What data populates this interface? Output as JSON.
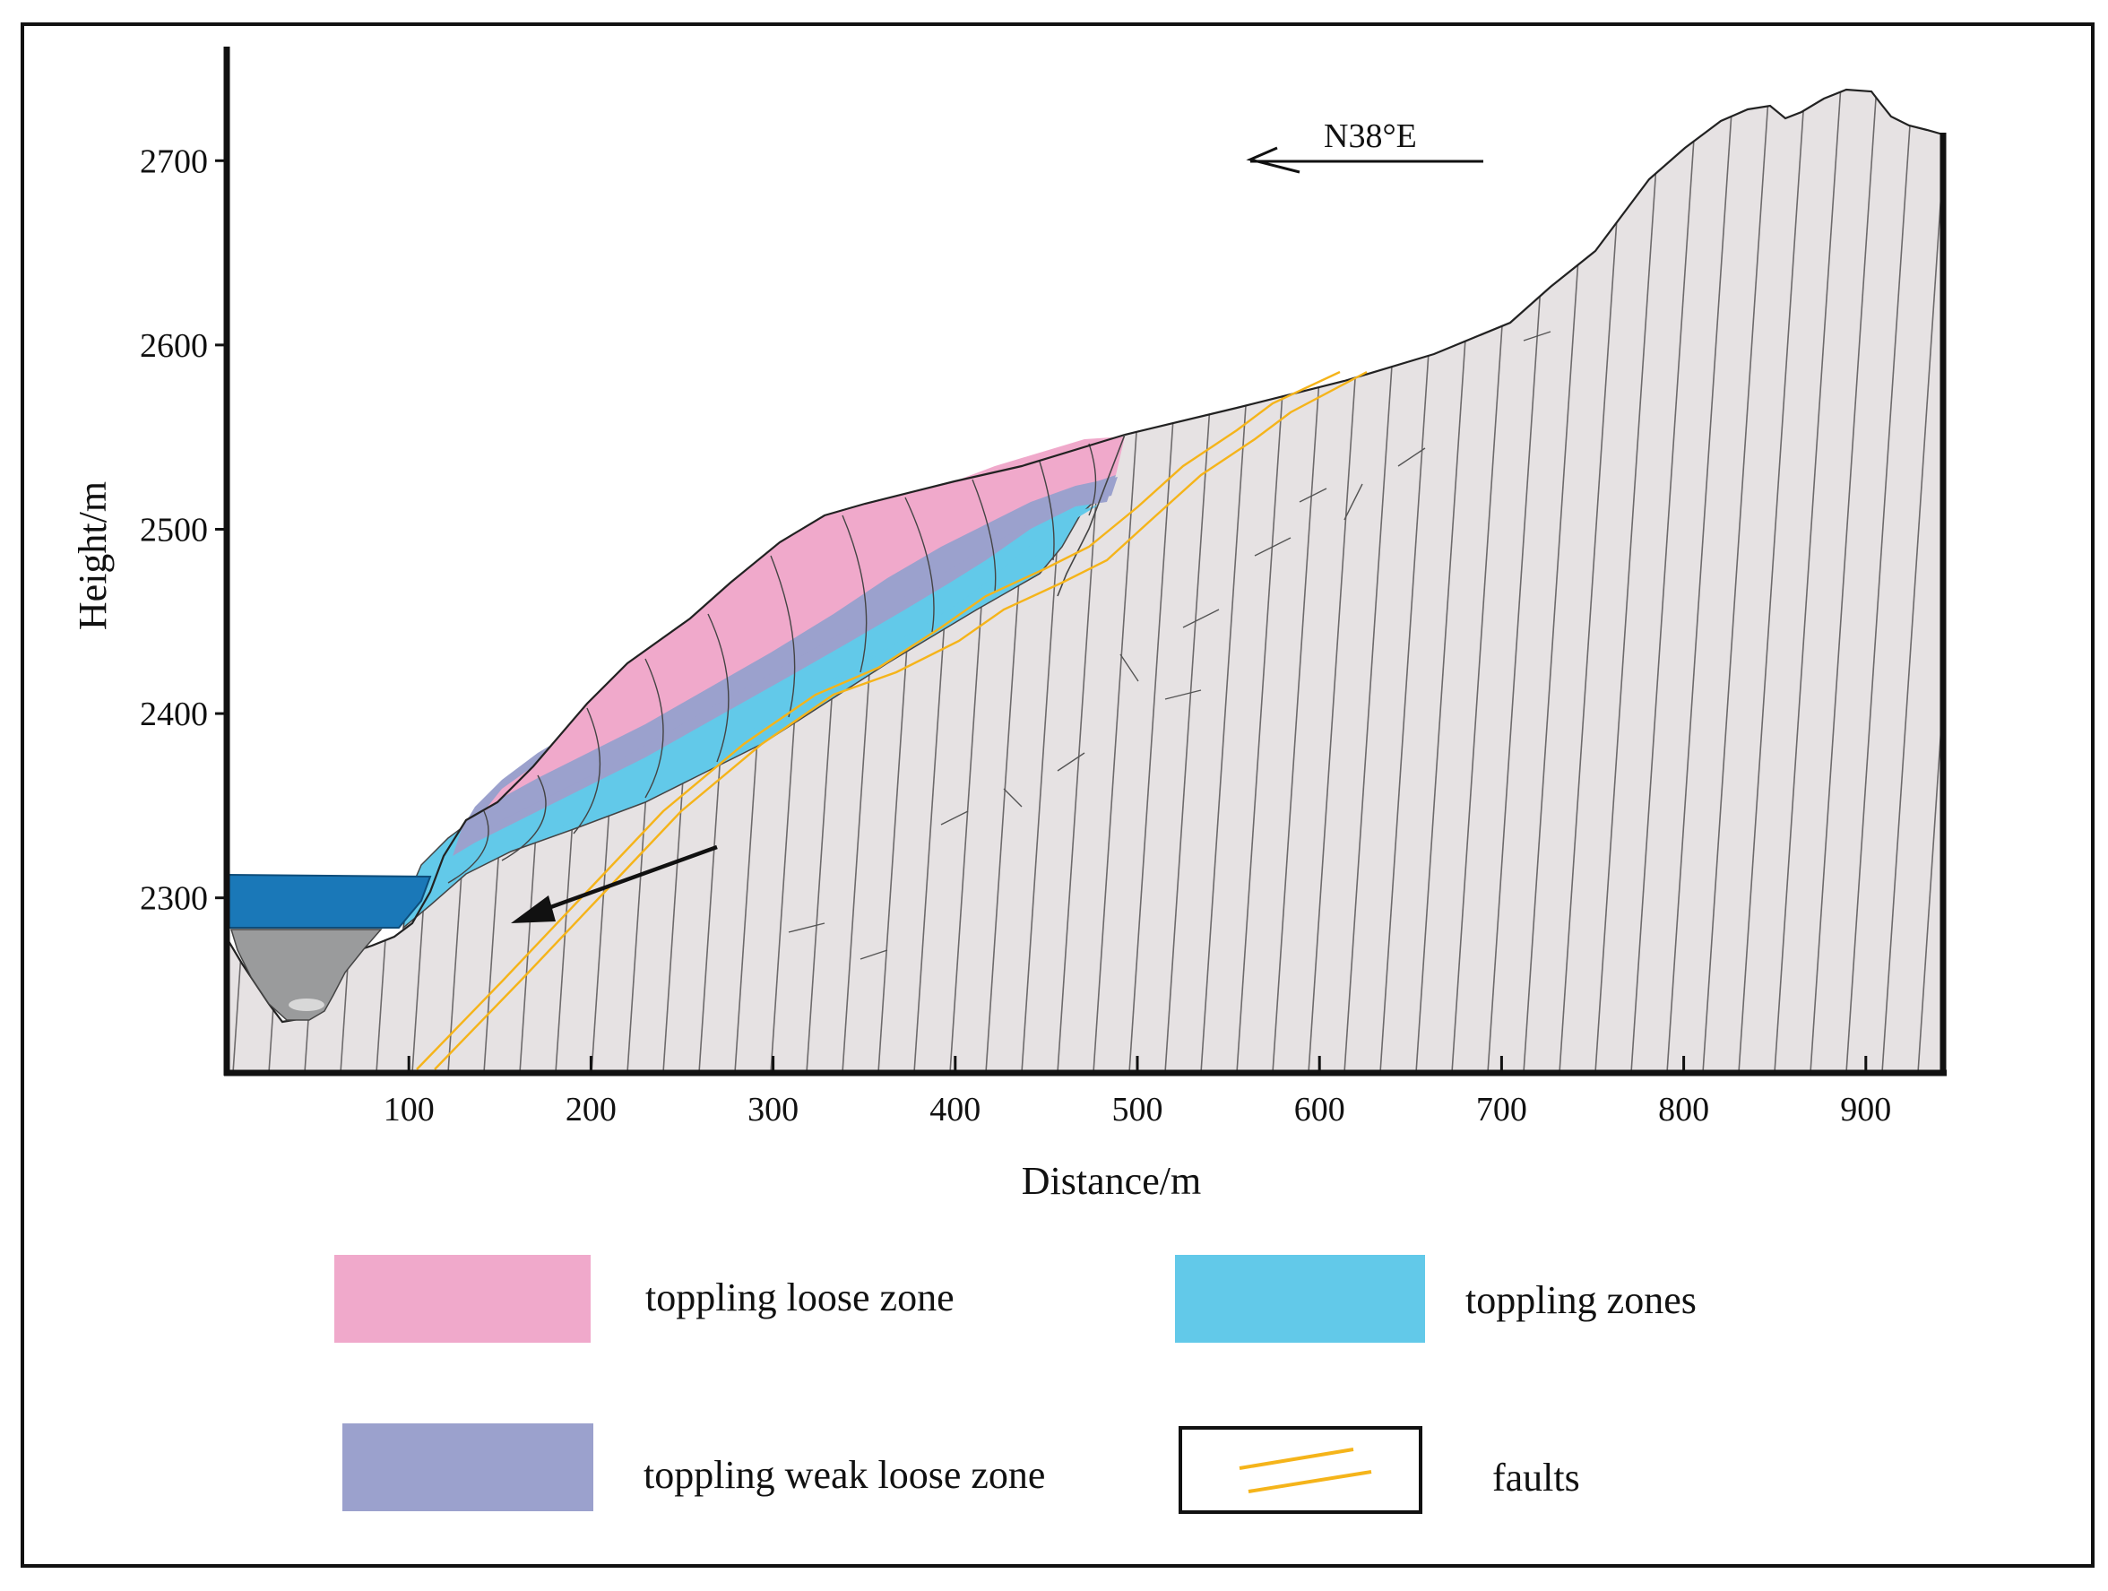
{
  "diagram": {
    "type": "geological-cross-section",
    "orientation_label": "N38°E",
    "x_axis": {
      "title": "Distance/m",
      "range": [
        0,
        940
      ],
      "ticks": [
        100,
        200,
        300,
        400,
        500,
        600,
        700,
        800,
        900
      ]
    },
    "y_axis": {
      "title": "Height/m",
      "range": [
        2205,
        2760
      ],
      "ticks": [
        2300,
        2400,
        2500,
        2600,
        2700
      ]
    },
    "legend": [
      {
        "id": "loose",
        "label": "toppling loose zone",
        "color": "#f0a9cb"
      },
      {
        "id": "zones",
        "label": "toppling zones",
        "color": "#62c9e9"
      },
      {
        "id": "weak",
        "label": "toppling weak loose zone",
        "color": "#9ba1cd"
      },
      {
        "id": "faults",
        "label": "faults",
        "color": "#f5b41a"
      }
    ],
    "colors": {
      "bedrock": "#e6e2e3",
      "reservoir": "#1a78b8",
      "riverbed": "#9a9b9c",
      "fault": "#f5b41a",
      "frame": "#111111"
    }
  }
}
